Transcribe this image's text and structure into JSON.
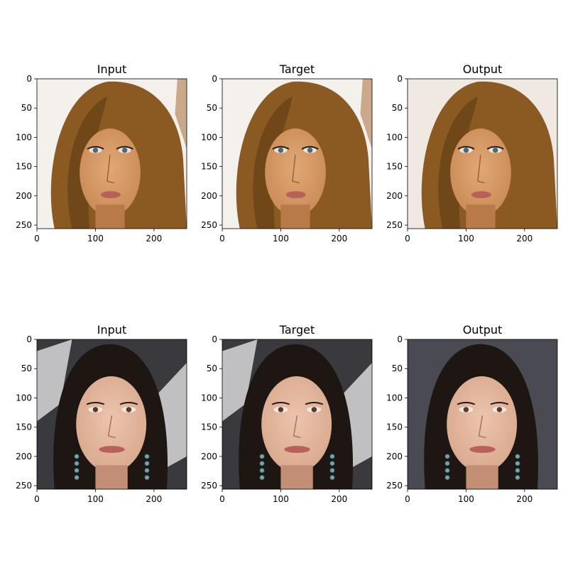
{
  "chart_data": {
    "type": "image-grid",
    "rows": 2,
    "cols": 3,
    "panels": [
      {
        "title": "Input",
        "row": 0,
        "col": 0,
        "xlim": [
          0,
          256
        ],
        "ylim": [
          256,
          0
        ],
        "xticks": [
          0,
          100,
          200
        ],
        "yticks": [
          0,
          50,
          100,
          150,
          200,
          250
        ]
      },
      {
        "title": "Target",
        "row": 0,
        "col": 1,
        "xlim": [
          0,
          256
        ],
        "ylim": [
          256,
          0
        ],
        "xticks": [
          0,
          100,
          200
        ],
        "yticks": [
          0,
          50,
          100,
          150,
          200,
          250
        ]
      },
      {
        "title": "Output",
        "row": 0,
        "col": 2,
        "xlim": [
          0,
          256
        ],
        "ylim": [
          256,
          0
        ],
        "xticks": [
          0,
          100,
          200
        ],
        "yticks": [
          0,
          50,
          100,
          150,
          200,
          250
        ]
      },
      {
        "title": "Input",
        "row": 1,
        "col": 0,
        "xlim": [
          0,
          256
        ],
        "ylim": [
          256,
          0
        ],
        "xticks": [
          0,
          100,
          200
        ],
        "yticks": [
          0,
          50,
          100,
          150,
          200,
          250
        ]
      },
      {
        "title": "Target",
        "row": 1,
        "col": 1,
        "xlim": [
          0,
          256
        ],
        "ylim": [
          256,
          0
        ],
        "xticks": [
          0,
          100,
          200
        ],
        "yticks": [
          0,
          50,
          100,
          150,
          200,
          250
        ]
      },
      {
        "title": "Output",
        "row": 1,
        "col": 2,
        "xlim": [
          0,
          256
        ],
        "ylim": [
          256,
          0
        ],
        "xticks": [
          0,
          100,
          200
        ],
        "yticks": [
          0,
          50,
          100,
          150,
          200,
          250
        ]
      }
    ]
  },
  "colors": {
    "row0_hair": "#8a5a22",
    "row0_hair_dark": "#5e3a14",
    "row0_skin": "#c98a55",
    "row0_bg": "#f4f1ec",
    "row1_hair": "#1e1612",
    "row1_skin": "#d8a88c",
    "row1_bg": "#3a3a3e",
    "row1_bg_light": "#d8d8da",
    "lips": "#b8615a"
  }
}
